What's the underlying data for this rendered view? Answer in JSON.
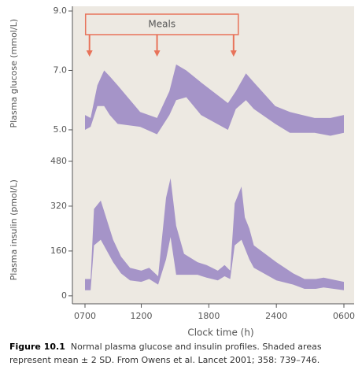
{
  "chart_data": [
    {
      "type": "band",
      "ylabel": "Plasma glucose (mmol/L)",
      "color": "#a594c8",
      "xlim": [
        7,
        30
      ],
      "ylim": [
        4.8,
        9.0
      ],
      "yticks": [
        {
          "value": 5,
          "label": "5.0"
        },
        {
          "value": 7,
          "label": "7.0"
        },
        {
          "value": 9,
          "label": "9.0"
        }
      ],
      "x": [
        7,
        7.5,
        8.1,
        8.7,
        9.2,
        9.9,
        11.9,
        13.4,
        14.5,
        15.1,
        16,
        17.3,
        19.7,
        20.4,
        21.3,
        22,
        23.9,
        25.2,
        27.4,
        28.8,
        30
      ],
      "upper": [
        5.5,
        5.4,
        6.5,
        7.0,
        6.8,
        6.5,
        5.6,
        5.4,
        6.3,
        7.2,
        7.0,
        6.6,
        5.9,
        6.3,
        6.9,
        6.6,
        5.8,
        5.6,
        5.4,
        5.4,
        5.5
      ],
      "lower": [
        5.0,
        5.1,
        5.8,
        5.8,
        5.5,
        5.2,
        5.1,
        4.85,
        5.5,
        6.0,
        6.1,
        5.5,
        5.0,
        5.7,
        6.0,
        5.7,
        5.2,
        4.9,
        4.9,
        4.8,
        4.9
      ],
      "meals": {
        "label": "Meals",
        "color": "#e8735a",
        "x": [
          7.4,
          13.4,
          20.2
        ]
      }
    },
    {
      "type": "band",
      "ylabel": "Plasma insulin (pmol/L)",
      "xlabel": "Clock time (h)",
      "color": "#a594c8",
      "xlim": [
        7,
        30
      ],
      "ylim": [
        -20,
        490
      ],
      "yticks": [
        0,
        160,
        320,
        480
      ],
      "xticks": [
        {
          "value": 7,
          "label": "0700"
        },
        {
          "value": 12,
          "label": "1200"
        },
        {
          "value": 18,
          "label": "1800"
        },
        {
          "value": 24,
          "label": "2400"
        },
        {
          "value": 30,
          "label": "0600"
        }
      ],
      "x": [
        7,
        7.5,
        7.8,
        8.4,
        9.5,
        10.2,
        11,
        12,
        12.7,
        13.5,
        14.2,
        14.6,
        15.1,
        15.8,
        17,
        17.8,
        18.8,
        19.4,
        19.9,
        20.3,
        20.9,
        21.2,
        21.6,
        22,
        24,
        25.5,
        26.5,
        27.5,
        28.2,
        30
      ],
      "upper": [
        60,
        60,
        310,
        340,
        200,
        140,
        100,
        90,
        100,
        70,
        350,
        420,
        250,
        150,
        120,
        110,
        90,
        110,
        90,
        330,
        390,
        280,
        240,
        180,
        120,
        80,
        60,
        60,
        65,
        50
      ],
      "lower": [
        20,
        20,
        180,
        200,
        120,
        80,
        55,
        50,
        60,
        40,
        130,
        210,
        75,
        75,
        75,
        65,
        55,
        70,
        60,
        180,
        200,
        170,
        130,
        100,
        55,
        40,
        25,
        25,
        30,
        20
      ]
    }
  ],
  "caption": {
    "label": "Figure 10.1",
    "text": "Normal plasma glucose and insulin profiles. Shaded areas represent mean ± 2 SD. From Owens et al. Lancet 2001; 358: 739–746."
  }
}
